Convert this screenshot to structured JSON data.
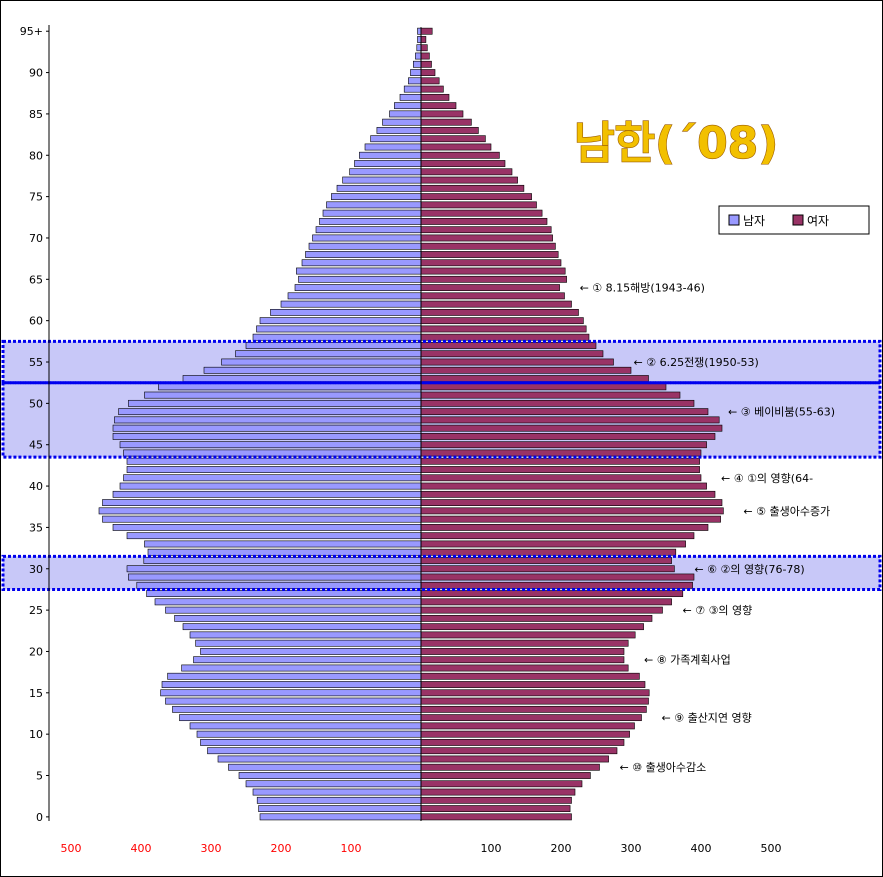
{
  "chart_data": {
    "type": "bar",
    "title": "남한(´08)",
    "xlabel": "",
    "ylabel": "",
    "xlim": [
      -500,
      500
    ],
    "xtick_labels_left": [
      "500",
      "400",
      "300",
      "200",
      "100"
    ],
    "xtick_labels_right": [
      "100",
      "200",
      "300",
      "400",
      "500"
    ],
    "ytick_labels": [
      "0",
      "5",
      "10",
      "15",
      "20",
      "25",
      "30",
      "35",
      "40",
      "45",
      "50",
      "55",
      "60",
      "65",
      "70",
      "75",
      "80",
      "85",
      "90",
      "95+"
    ],
    "legend_position": "top-right",
    "grid": false,
    "ages": [
      0,
      1,
      2,
      3,
      4,
      5,
      6,
      7,
      8,
      9,
      10,
      11,
      12,
      13,
      14,
      15,
      16,
      17,
      18,
      19,
      20,
      21,
      22,
      23,
      24,
      25,
      26,
      27,
      28,
      29,
      30,
      31,
      32,
      33,
      34,
      35,
      36,
      37,
      38,
      39,
      40,
      41,
      42,
      43,
      44,
      45,
      46,
      47,
      48,
      49,
      50,
      51,
      52,
      53,
      54,
      55,
      56,
      57,
      58,
      59,
      60,
      61,
      62,
      63,
      64,
      65,
      66,
      67,
      68,
      69,
      70,
      71,
      72,
      73,
      74,
      75,
      76,
      77,
      78,
      79,
      80,
      81,
      82,
      83,
      84,
      85,
      86,
      87,
      88,
      89,
      90,
      91,
      92,
      93,
      94,
      95
    ],
    "series": [
      {
        "name": "남자",
        "color": "#9999ff",
        "values": [
          230,
          232,
          234,
          240,
          250,
          260,
          275,
          290,
          305,
          315,
          320,
          330,
          345,
          355,
          365,
          372,
          370,
          362,
          342,
          325,
          315,
          322,
          330,
          340,
          352,
          365,
          380,
          392,
          406,
          418,
          420,
          396,
          390,
          395,
          420,
          440,
          455,
          460,
          455,
          440,
          430,
          425,
          420,
          420,
          425,
          430,
          440,
          440,
          438,
          432,
          418,
          395,
          375,
          340,
          310,
          285,
          265,
          250,
          240,
          235,
          230,
          215,
          200,
          190,
          180,
          175,
          178,
          170,
          165,
          160,
          155,
          150,
          145,
          140,
          135,
          128,
          120,
          112,
          102,
          95,
          88,
          80,
          72,
          63,
          55,
          45,
          38,
          30,
          24,
          18,
          15,
          11,
          8,
          6,
          5,
          5
        ]
      },
      {
        "name": "여자",
        "color": "#993366",
        "values": [
          215,
          213,
          215,
          220,
          230,
          242,
          255,
          268,
          280,
          290,
          298,
          305,
          315,
          322,
          325,
          326,
          320,
          312,
          296,
          290,
          290,
          296,
          306,
          318,
          330,
          345,
          358,
          374,
          388,
          390,
          362,
          358,
          364,
          378,
          390,
          410,
          428,
          432,
          430,
          420,
          408,
          400,
          398,
          398,
          400,
          408,
          420,
          430,
          426,
          410,
          390,
          370,
          350,
          325,
          300,
          275,
          260,
          250,
          240,
          236,
          232,
          225,
          215,
          205,
          198,
          208,
          206,
          200,
          196,
          192,
          188,
          186,
          180,
          173,
          165,
          158,
          147,
          138,
          130,
          120,
          112,
          100,
          92,
          82,
          72,
          60,
          50,
          40,
          32,
          26,
          20,
          15,
          12,
          9,
          7,
          16
        ]
      }
    ]
  },
  "annotations": [
    {
      "text": "← ① 8.15해방(1943-46)",
      "age": 64
    },
    {
      "text": "← ② 6.25전쟁(1950-53)",
      "age": 55
    },
    {
      "text": "← ③ 베이비붐(55-63)",
      "age": 49
    },
    {
      "text": "← ④ ①의 영향(64-",
      "age": 41
    },
    {
      "text": "← ⑤ 출생아수증가",
      "age": 37
    },
    {
      "text": "← ⑥ ②의 영향(76-78)",
      "age": 30
    },
    {
      "text": "← ⑦ ③의 영향",
      "age": 25
    },
    {
      "text": "← ⑧ 가족계획사업",
      "age": 19
    },
    {
      "text": "← ⑨ 출산지연 영향",
      "age": 12
    },
    {
      "text": "← ⑩ 출생아수감소",
      "age": 6
    }
  ],
  "highlight_bands": [
    {
      "from_age": 53,
      "to_age": 57
    },
    {
      "from_age": 44,
      "to_age": 52
    },
    {
      "from_age": 28,
      "to_age": 31
    }
  ],
  "colors": {
    "male": "#9999ff",
    "female": "#993366",
    "band": "#c8c8f8",
    "band_border": "#0000ee",
    "x_left_ticks": "#ff0000",
    "x_right_ticks": "#000000"
  }
}
